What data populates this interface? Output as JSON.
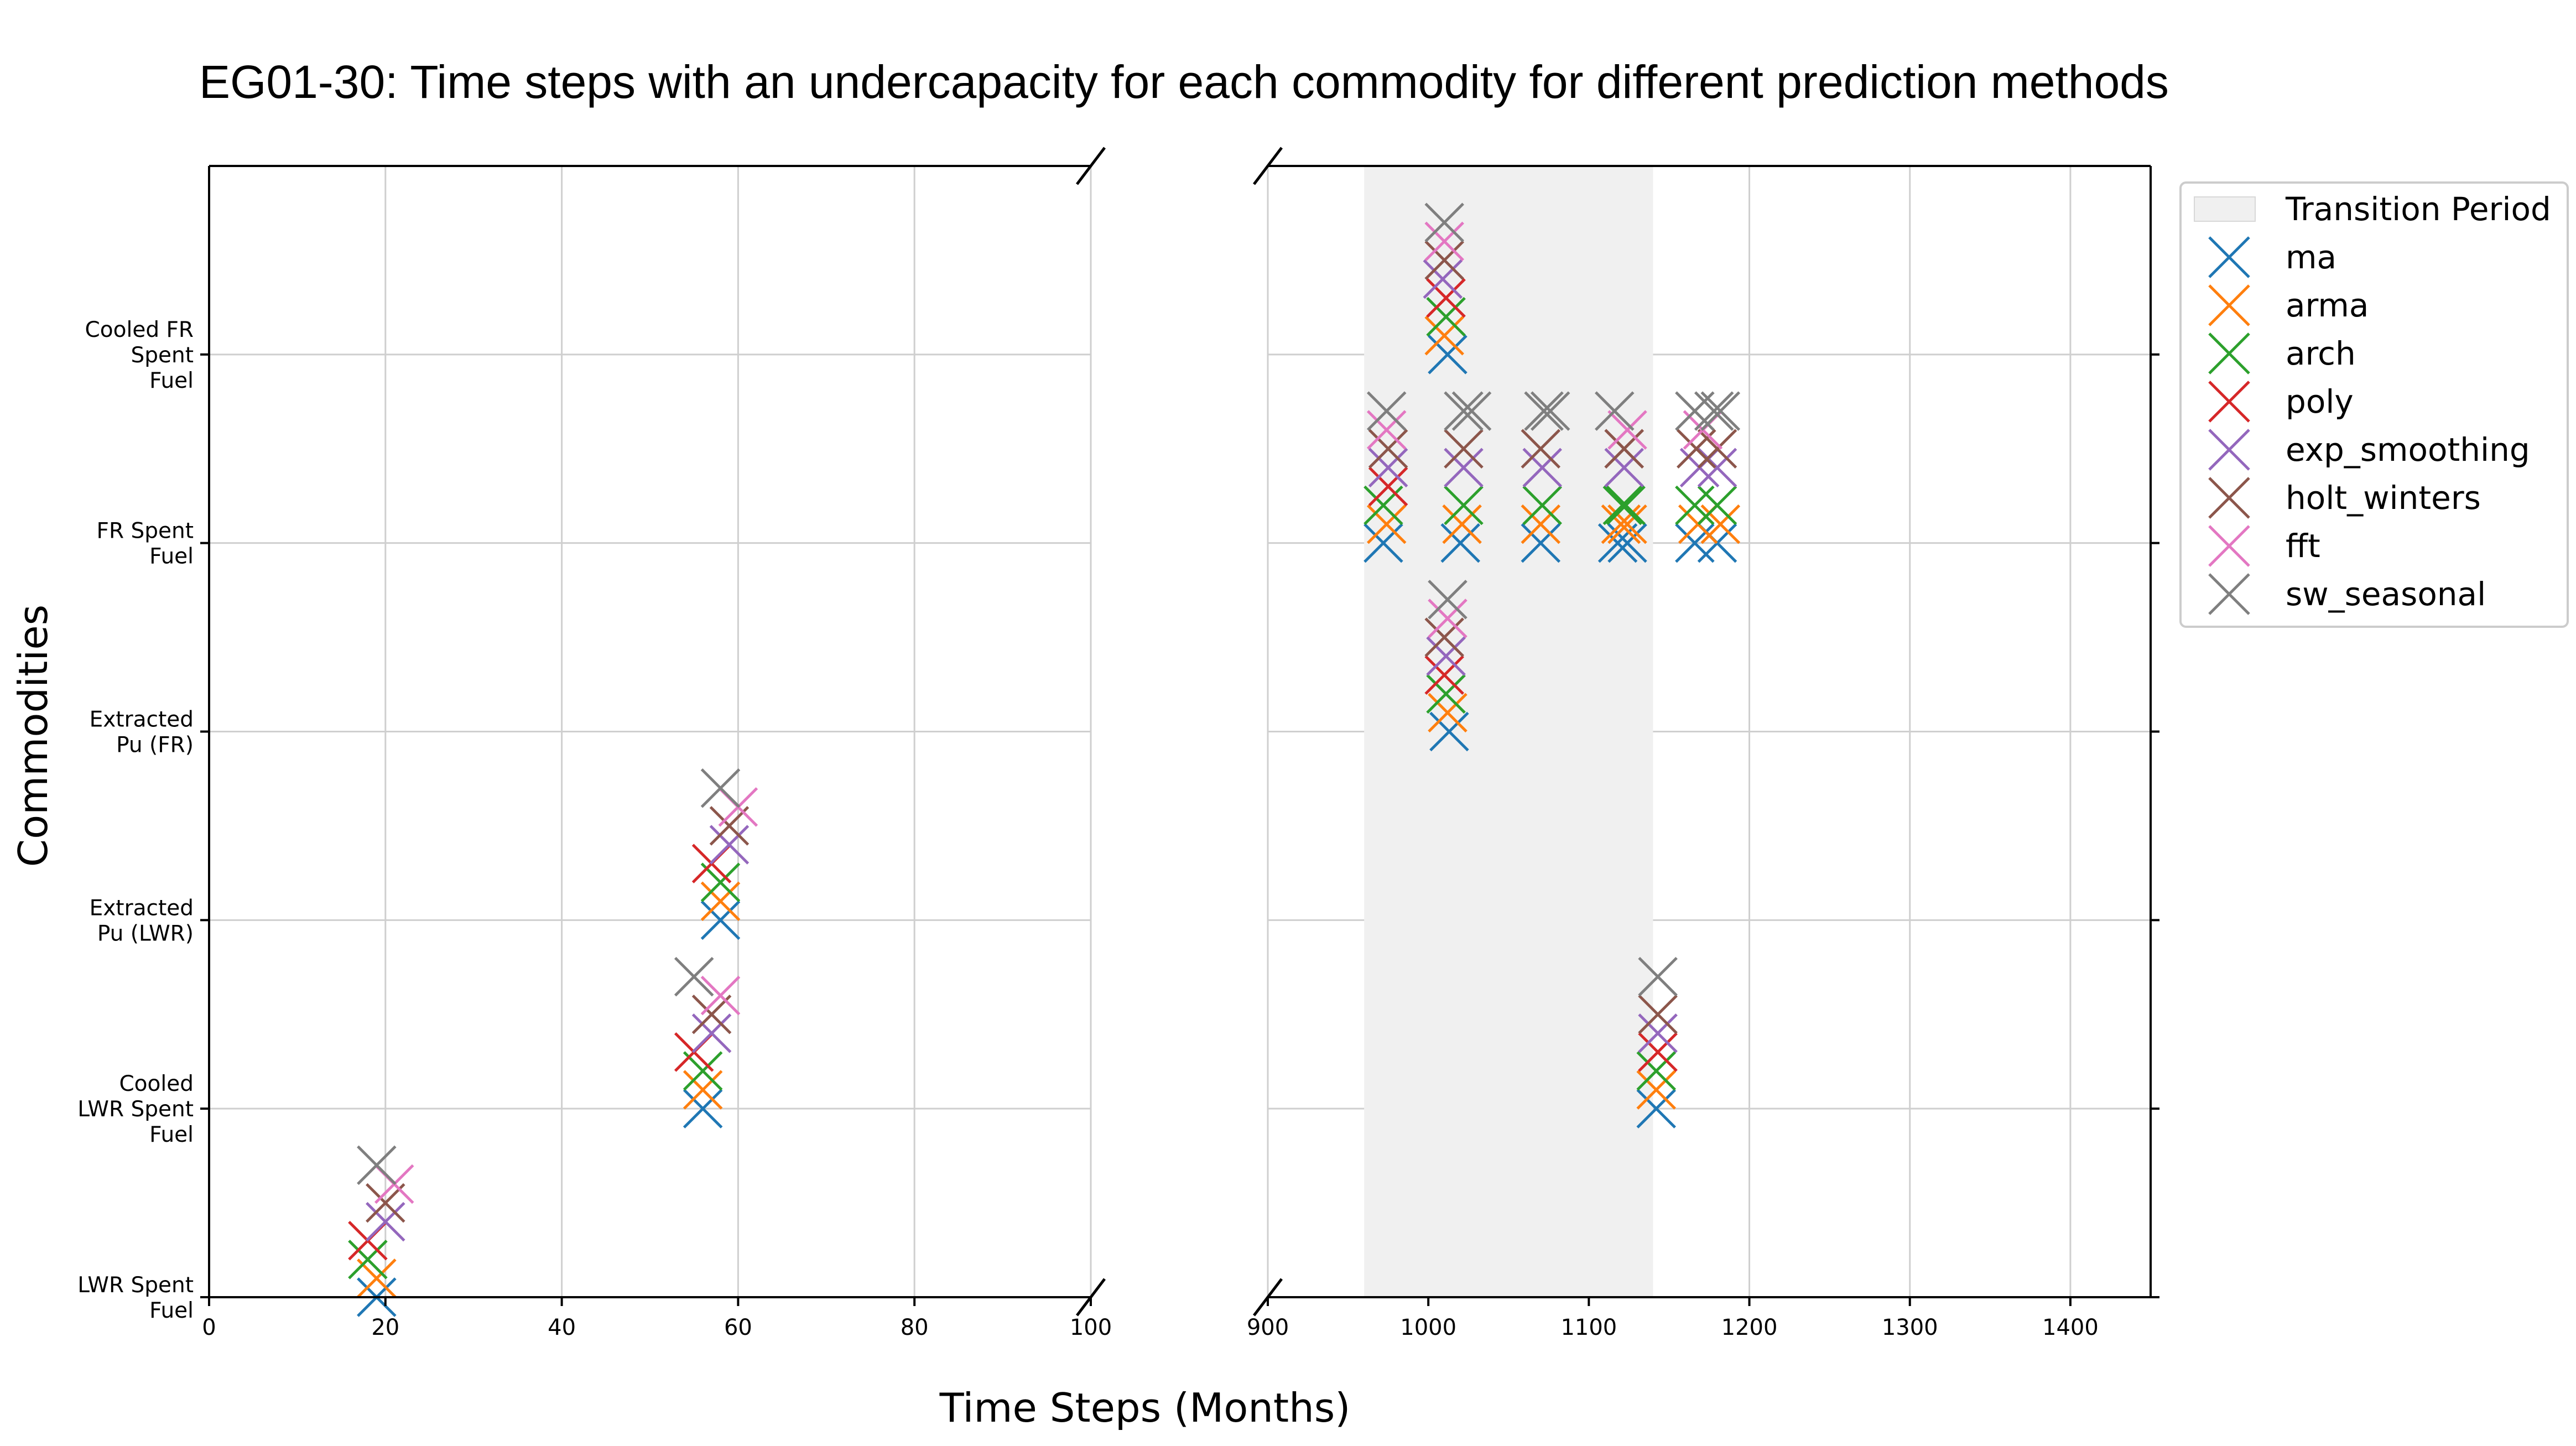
{
  "title": "EG01-30: Time steps with an undercapacity for each commodity for different prediction methods",
  "xlabel": "Time Steps (Months)",
  "ylabel": "Commodities",
  "colors": {
    "ma": "#1f77b4",
    "arma": "#ff7f0e",
    "arch": "#2ca02c",
    "poly": "#d62728",
    "exp_smoothing": "#9467bd",
    "holt_winters": "#8c564b",
    "fft": "#e377c2",
    "sw_seasonal": "#7f7f7f",
    "transition": "#f0f0f0"
  },
  "legend": {
    "position": "upper right, outside plot",
    "entries": [
      "Transition Period",
      "ma",
      "arma",
      "arch",
      "poly",
      "exp_smoothing",
      "holt_winters",
      "fft",
      "sw_seasonal"
    ]
  },
  "chart_data": {
    "type": "scatter",
    "title": "EG01-30: Time steps with an undercapacity for each commodity for different prediction methods",
    "xlabel": "Time Steps (Months)",
    "ylabel": "Commodities",
    "broken_x_axis": true,
    "grid": true,
    "marker": "x",
    "categories": [
      "LWR Spent\nFuel",
      "Cooled\nLWR Spent\nFuel",
      "Extracted\nPu (LWR)",
      "Extracted\nPu (FR)",
      "FR Spent\nFuel",
      "Cooled FR\nSpent\nFuel"
    ],
    "category_offsets": {
      "ma": 0,
      "arma": 0.1,
      "arch": 0.2,
      "poly": 0.3,
      "exp_smoothing": 0.4,
      "holt_winters": 0.5,
      "fft": 0.6,
      "sw_seasonal": 0.7
    },
    "panels": [
      {
        "xlim": [
          0,
          100
        ],
        "xticks": [
          0,
          20,
          40,
          60,
          80,
          100
        ]
      },
      {
        "xlim": [
          900,
          1450
        ],
        "xticks": [
          900,
          1000,
          1100,
          1200,
          1300,
          1400
        ],
        "shaded_region": {
          "label": "Transition Period",
          "x": [
            960,
            1140
          ]
        }
      }
    ],
    "series": [
      {
        "name": "ma",
        "points": [
          [
            19,
            0
          ],
          [
            56,
            1
          ],
          [
            58,
            2
          ],
          [
            1012,
            5
          ],
          [
            1013,
            3
          ],
          [
            972,
            4
          ],
          [
            1020,
            4
          ],
          [
            1070,
            4
          ],
          [
            1118,
            4
          ],
          [
            1124,
            4
          ],
          [
            1166,
            4
          ],
          [
            1180,
            4
          ],
          [
            1142,
            1
          ]
        ]
      },
      {
        "name": "arma",
        "points": [
          [
            19,
            0
          ],
          [
            56,
            1
          ],
          [
            58,
            2
          ],
          [
            1010,
            5
          ],
          [
            1012,
            3
          ],
          [
            974,
            4
          ],
          [
            1021,
            4
          ],
          [
            1070,
            4
          ],
          [
            1120,
            4
          ],
          [
            1124,
            4
          ],
          [
            1168,
            4
          ],
          [
            1182,
            4
          ],
          [
            1142,
            1
          ]
        ]
      },
      {
        "name": "arch",
        "points": [
          [
            18,
            0
          ],
          [
            56,
            1
          ],
          [
            58,
            2
          ],
          [
            1011,
            5
          ],
          [
            1011,
            3
          ],
          [
            972,
            4
          ],
          [
            1022,
            4
          ],
          [
            1071,
            4
          ],
          [
            1121,
            4
          ],
          [
            1123,
            4
          ],
          [
            1166,
            4
          ],
          [
            1180,
            4
          ],
          [
            1142,
            1
          ]
        ]
      },
      {
        "name": "poly",
        "points": [
          [
            18,
            0
          ],
          [
            55,
            1
          ],
          [
            57,
            2
          ],
          [
            1011,
            5
          ],
          [
            1010,
            3
          ],
          [
            975,
            4
          ],
          [
            1143,
            1
          ]
        ]
      },
      {
        "name": "exp_smoothing",
        "points": [
          [
            20,
            0
          ],
          [
            57,
            1
          ],
          [
            59,
            2
          ],
          [
            1009,
            5
          ],
          [
            1011,
            3
          ],
          [
            975,
            4
          ],
          [
            1022,
            4
          ],
          [
            1071,
            4
          ],
          [
            1122,
            4
          ],
          [
            1169,
            4
          ],
          [
            1180,
            4
          ],
          [
            1143,
            1
          ]
        ]
      },
      {
        "name": "holt_winters",
        "points": [
          [
            20,
            0
          ],
          [
            57,
            1
          ],
          [
            59,
            2
          ],
          [
            1010,
            5
          ],
          [
            1010,
            3
          ],
          [
            975,
            4
          ],
          [
            1022,
            4
          ],
          [
            1070,
            4
          ],
          [
            1122,
            4
          ],
          [
            1122,
            4
          ],
          [
            1167,
            4
          ],
          [
            1180,
            4
          ],
          [
            1143,
            1
          ]
        ]
      },
      {
        "name": "fft",
        "points": [
          [
            21,
            0
          ],
          [
            58,
            1
          ],
          [
            60,
            2
          ],
          [
            1010,
            5
          ],
          [
            1012,
            3
          ],
          [
            974,
            4
          ],
          [
            1124,
            4
          ],
          [
            1171,
            4
          ]
        ]
      },
      {
        "name": "sw_seasonal",
        "points": [
          [
            19,
            0
          ],
          [
            55,
            1
          ],
          [
            58,
            2
          ],
          [
            1010,
            5
          ],
          [
            1012,
            3
          ],
          [
            974,
            4
          ],
          [
            1022,
            4
          ],
          [
            1027,
            4
          ],
          [
            1072,
            4
          ],
          [
            1076,
            4
          ],
          [
            1116,
            4
          ],
          [
            1166,
            4
          ],
          [
            1178,
            4
          ],
          [
            1182,
            4
          ],
          [
            1143,
            1
          ]
        ]
      }
    ]
  }
}
